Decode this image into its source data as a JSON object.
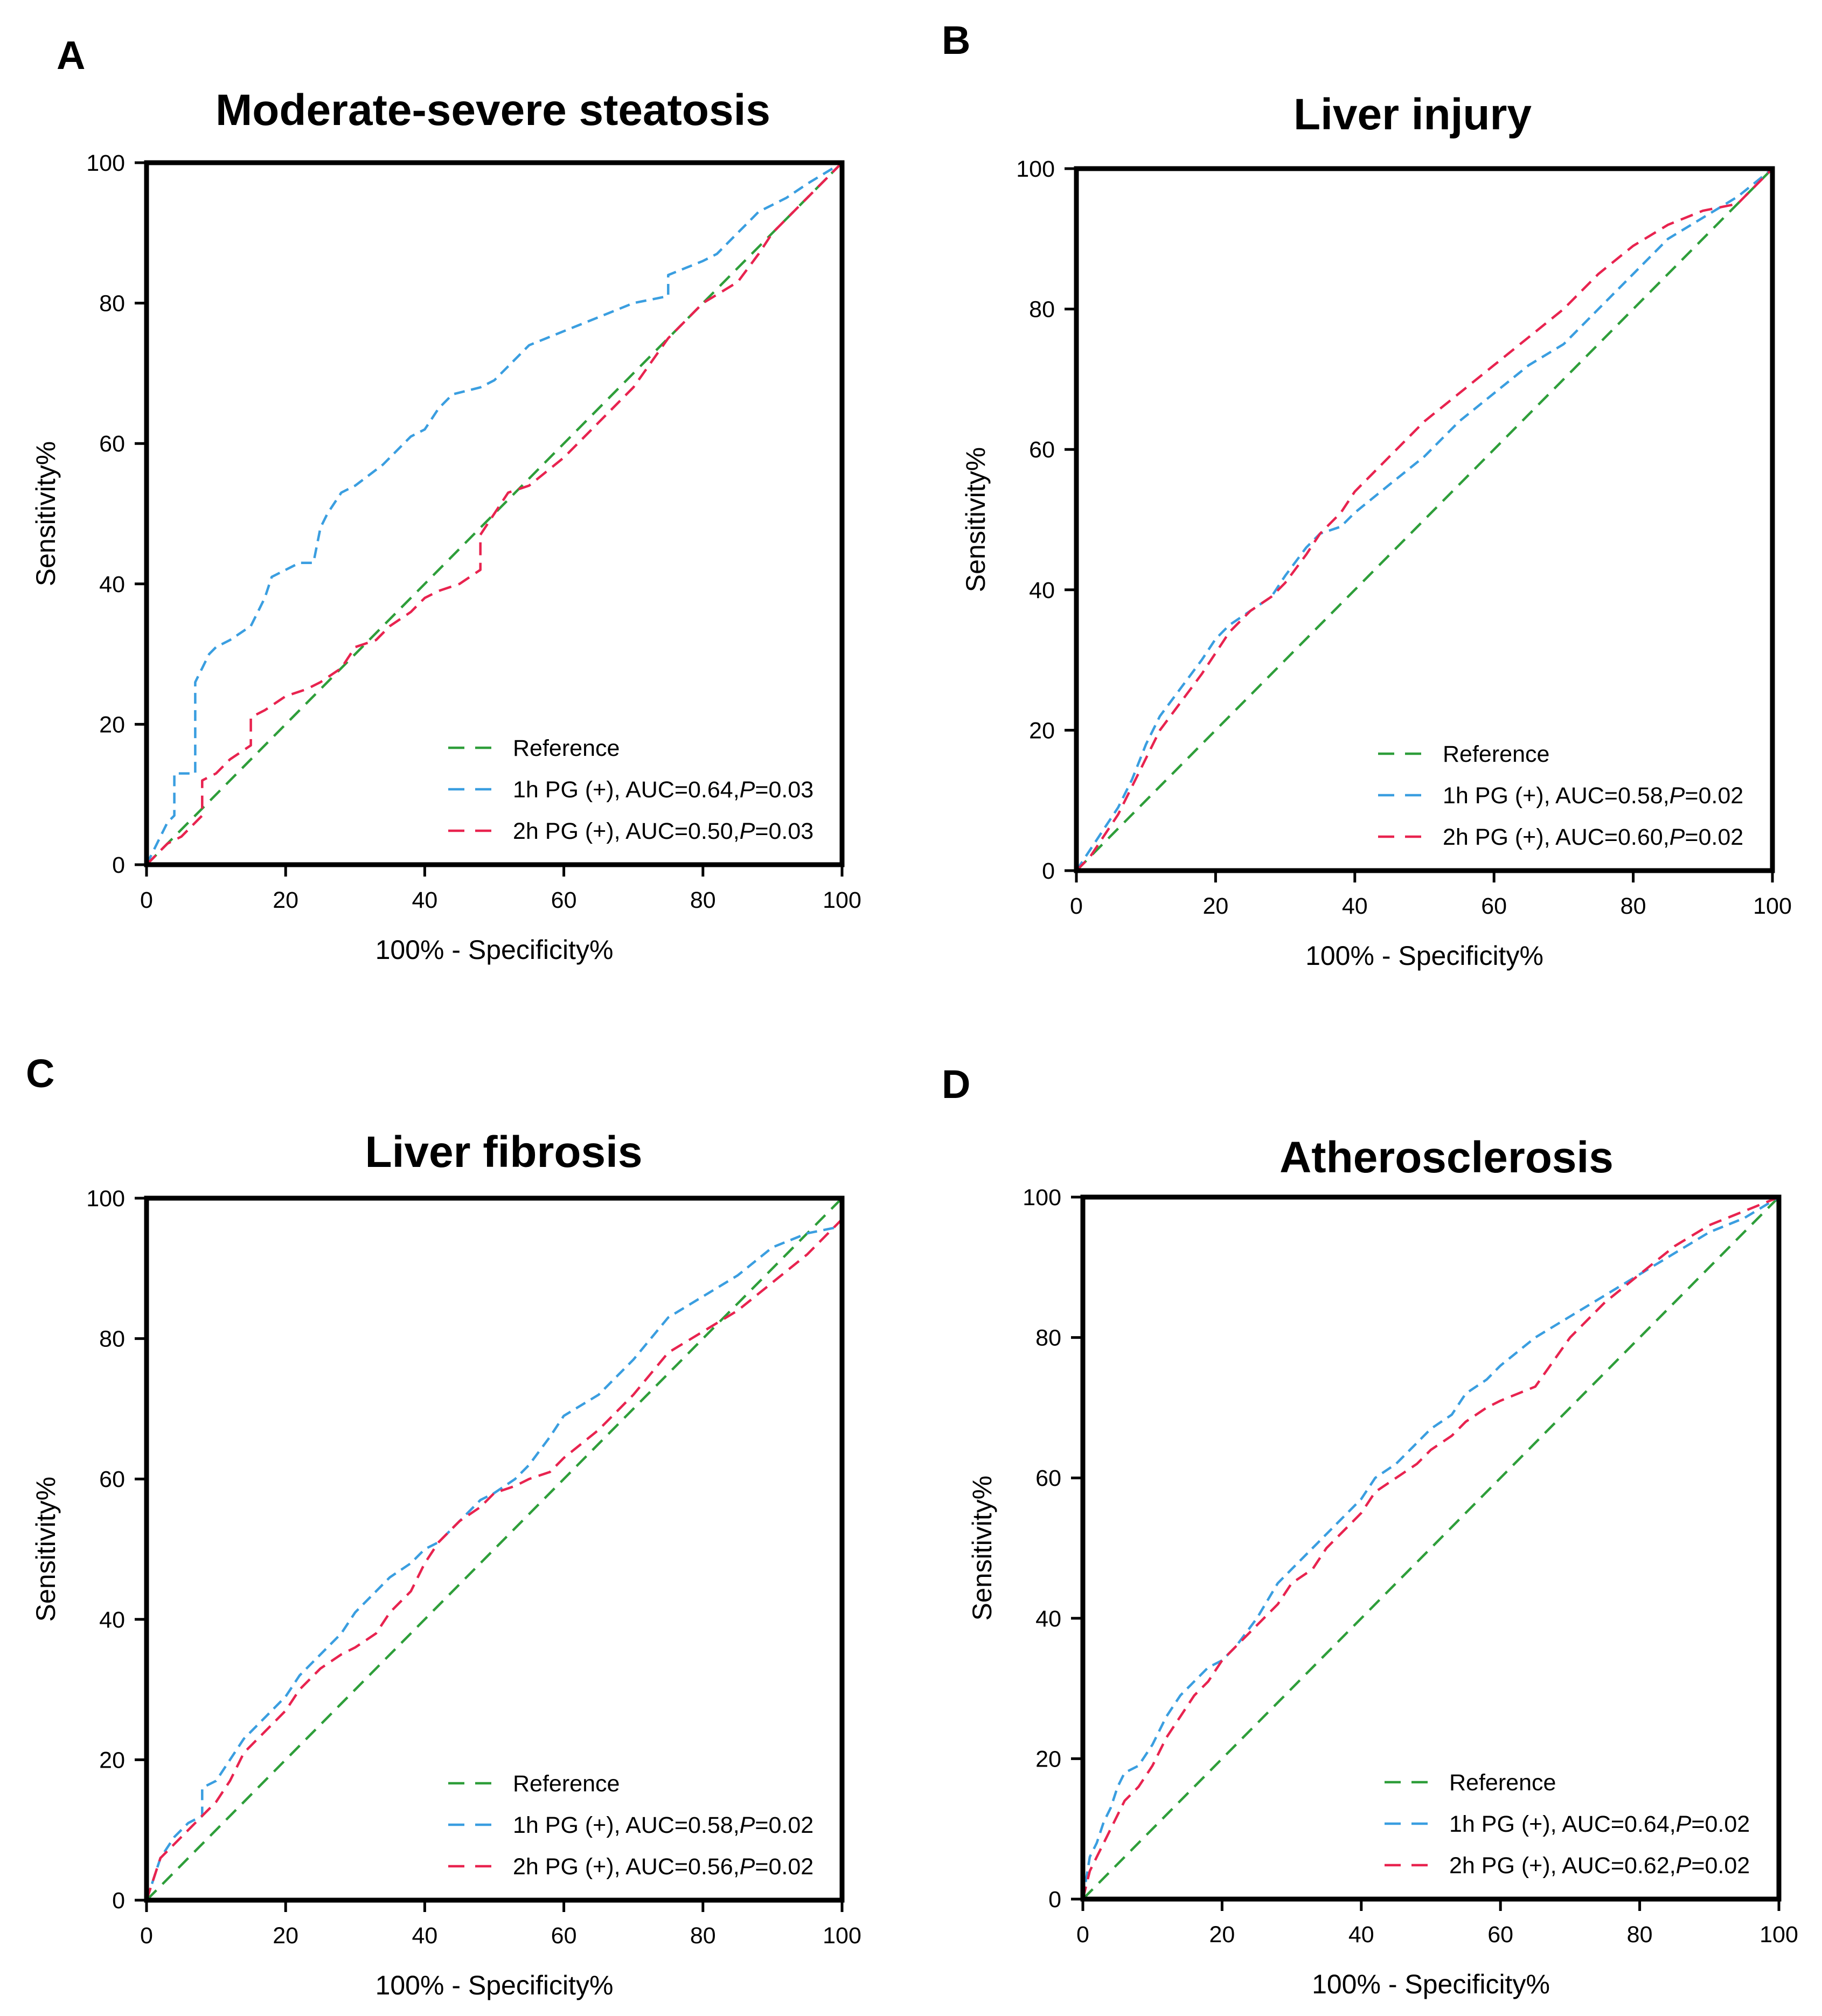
{
  "colors": {
    "reference": "#2e9e3a",
    "pg1h": "#3a9ee0",
    "pg2h": "#e8234f",
    "axis": "#000000"
  },
  "chart_data": [
    {
      "panel": "A",
      "type": "line",
      "title": "Moderate-severe steatosis",
      "xlabel": "100% - Specificity%",
      "ylabel": "Sensitivity%",
      "xlim": [
        0,
        100
      ],
      "ylim": [
        0,
        100
      ],
      "xticks": [
        "0",
        "20",
        "40",
        "60",
        "80",
        "100"
      ],
      "yticks": [
        "0",
        "20",
        "40",
        "60",
        "80",
        "100"
      ],
      "legend_position": "bottom-right",
      "series": [
        {
          "key": "reference",
          "name": "Reference",
          "name_suffix": "",
          "x": [
            0,
            100
          ],
          "y": [
            0,
            100
          ]
        },
        {
          "key": "pg1h",
          "name": "1h PG (+), AUC=0.64,",
          "name_suffix": "=0.03",
          "x": [
            0,
            1,
            2,
            3,
            4,
            4,
            5,
            6,
            7,
            7,
            8,
            9,
            10,
            12,
            15,
            17,
            18,
            20,
            22,
            24,
            25,
            26,
            28,
            30,
            34,
            38,
            40,
            42,
            44,
            48,
            50,
            52,
            55,
            60,
            65,
            70,
            75,
            75,
            80,
            82,
            85,
            86,
            88,
            90,
            92,
            95,
            100
          ],
          "y": [
            0,
            2,
            4,
            6,
            7,
            13,
            13,
            13,
            13,
            26,
            28,
            30,
            31,
            32,
            34,
            38,
            41,
            42,
            43,
            43,
            48,
            50,
            53,
            54,
            57,
            61,
            62,
            65,
            67,
            68,
            69,
            71,
            74,
            76,
            78,
            80,
            81,
            84,
            86,
            87,
            90,
            91,
            93,
            94,
            95,
            97,
            100
          ]
        },
        {
          "key": "pg2h",
          "name": "2h PG (+), AUC=0.50,",
          "name_suffix": "=0.03",
          "x": [
            0,
            1,
            2,
            3,
            5,
            7,
            8,
            8,
            10,
            12,
            15,
            15,
            17,
            20,
            23,
            25,
            28,
            30,
            33,
            35,
            38,
            40,
            42,
            45,
            48,
            48,
            50,
            52,
            55,
            60,
            65,
            70,
            75,
            80,
            85,
            88,
            90,
            95,
            100
          ],
          "y": [
            0,
            1,
            2,
            3,
            4,
            6,
            7,
            12,
            13,
            15,
            17,
            21,
            22,
            24,
            25,
            26,
            28,
            31,
            32,
            34,
            36,
            38,
            39,
            40,
            42,
            47,
            50,
            53,
            54,
            58,
            63,
            68,
            75,
            80,
            83,
            87,
            90,
            95,
            100
          ]
        }
      ]
    },
    {
      "panel": "B",
      "type": "line",
      "title": "Liver injury",
      "xlabel": "100% - Specificity%",
      "ylabel": "Sensitivity%",
      "xlim": [
        0,
        100
      ],
      "ylim": [
        0,
        100
      ],
      "xticks": [
        "0",
        "20",
        "40",
        "60",
        "80",
        "100"
      ],
      "yticks": [
        "0",
        "20",
        "40",
        "60",
        "80",
        "100"
      ],
      "legend_position": "bottom-right",
      "series": [
        {
          "key": "reference",
          "name": "Reference",
          "name_suffix": "",
          "x": [
            0,
            100
          ],
          "y": [
            0,
            100
          ]
        },
        {
          "key": "pg1h",
          "name": "1h PG (+), AUC=0.58,",
          "name_suffix": "=0.02",
          "x": [
            0,
            2,
            4,
            6,
            8,
            10,
            12,
            15,
            18,
            20,
            22,
            25,
            28,
            30,
            33,
            35,
            38,
            40,
            45,
            50,
            55,
            60,
            65,
            70,
            75,
            80,
            85,
            90,
            95,
            100
          ],
          "y": [
            0,
            3,
            6,
            9,
            13,
            18,
            22,
            26,
            30,
            33,
            35,
            37,
            39,
            42,
            46,
            48,
            49,
            51,
            55,
            59,
            64,
            68,
            72,
            75,
            80,
            85,
            90,
            93,
            96,
            100
          ]
        },
        {
          "key": "pg2h",
          "name": "2h PG (+), AUC=0.60,",
          "name_suffix": "=0.02",
          "x": [
            0,
            2,
            4,
            6,
            8,
            10,
            12,
            15,
            18,
            20,
            22,
            25,
            28,
            30,
            33,
            35,
            38,
            40,
            45,
            50,
            55,
            60,
            65,
            70,
            75,
            80,
            85,
            90,
            95,
            100
          ],
          "y": [
            0,
            2,
            5,
            8,
            12,
            16,
            20,
            24,
            28,
            31,
            34,
            37,
            39,
            41,
            45,
            48,
            51,
            54,
            59,
            64,
            68,
            72,
            76,
            80,
            85,
            89,
            92,
            94,
            95,
            100
          ]
        }
      ]
    },
    {
      "panel": "C",
      "type": "line",
      "title": "Liver fibrosis",
      "xlabel": "100% - Specificity%",
      "ylabel": "Sensitivity%",
      "xlim": [
        0,
        100
      ],
      "ylim": [
        0,
        100
      ],
      "xticks": [
        "0",
        "20",
        "40",
        "60",
        "80",
        "100"
      ],
      "yticks": [
        "0",
        "20",
        "40",
        "60",
        "80",
        "100"
      ],
      "legend_position": "bottom-right",
      "series": [
        {
          "key": "reference",
          "name": "Reference",
          "name_suffix": "",
          "x": [
            0,
            100
          ],
          "y": [
            0,
            100
          ]
        },
        {
          "key": "pg1h",
          "name": "1h PG (+), AUC=0.58,",
          "name_suffix": "=0.02",
          "x": [
            0,
            1,
            2,
            4,
            6,
            8,
            8,
            10,
            12,
            14,
            16,
            18,
            20,
            22,
            25,
            28,
            30,
            33,
            35,
            38,
            40,
            42,
            45,
            48,
            50,
            53,
            55,
            58,
            60,
            65,
            70,
            75,
            80,
            85,
            90,
            95,
            100
          ],
          "y": [
            0,
            3,
            6,
            9,
            11,
            12,
            16,
            17,
            20,
            23,
            25,
            27,
            29,
            32,
            35,
            38,
            41,
            44,
            46,
            48,
            50,
            51,
            54,
            57,
            58,
            60,
            62,
            66,
            69,
            72,
            77,
            83,
            86,
            89,
            93,
            95,
            96
          ]
        },
        {
          "key": "pg2h",
          "name": "2h PG (+), AUC=0.56,",
          "name_suffix": "=0.02",
          "x": [
            0,
            1,
            2,
            4,
            6,
            8,
            10,
            12,
            14,
            16,
            18,
            20,
            22,
            25,
            28,
            30,
            33,
            35,
            38,
            40,
            42,
            45,
            48,
            50,
            53,
            55,
            58,
            60,
            65,
            70,
            75,
            80,
            85,
            90,
            95,
            100
          ],
          "y": [
            0,
            3,
            6,
            8,
            10,
            12,
            14,
            17,
            21,
            23,
            25,
            27,
            30,
            33,
            35,
            36,
            38,
            41,
            44,
            48,
            51,
            54,
            56,
            58,
            59,
            60,
            61,
            63,
            67,
            72,
            78,
            81,
            84,
            88,
            92,
            97
          ]
        }
      ]
    },
    {
      "panel": "D",
      "type": "line",
      "title": "Atherosclerosis",
      "xlabel": "100% - Specificity%",
      "ylabel": "Sensitivity%",
      "xlim": [
        0,
        100
      ],
      "ylim": [
        0,
        100
      ],
      "xticks": [
        "0",
        "20",
        "40",
        "60",
        "80",
        "100"
      ],
      "yticks": [
        "0",
        "20",
        "40",
        "60",
        "80",
        "100"
      ],
      "legend_position": "bottom-right",
      "series": [
        {
          "key": "reference",
          "name": "Reference",
          "name_suffix": "",
          "x": [
            0,
            100
          ],
          "y": [
            0,
            100
          ]
        },
        {
          "key": "pg1h",
          "name": "1h PG (+), AUC=0.64,",
          "name_suffix": "=0.02",
          "x": [
            0,
            1,
            2,
            3,
            4,
            5,
            6,
            8,
            10,
            12,
            14,
            16,
            18,
            20,
            22,
            25,
            28,
            30,
            33,
            35,
            38,
            40,
            42,
            45,
            48,
            50,
            53,
            55,
            58,
            60,
            65,
            70,
            75,
            80,
            85,
            90,
            95,
            100
          ],
          "y": [
            0,
            6,
            8,
            11,
            13,
            16,
            18,
            19,
            22,
            26,
            29,
            31,
            33,
            34,
            36,
            40,
            45,
            47,
            50,
            52,
            55,
            57,
            60,
            62,
            65,
            67,
            69,
            72,
            74,
            76,
            80,
            83,
            86,
            89,
            92,
            95,
            97,
            100
          ]
        },
        {
          "key": "pg2h",
          "name": "2h PG (+), AUC=0.62,",
          "name_suffix": "=0.02",
          "x": [
            0,
            1,
            2,
            3,
            4,
            5,
            6,
            8,
            10,
            12,
            14,
            16,
            18,
            20,
            22,
            25,
            28,
            30,
            33,
            35,
            38,
            40,
            42,
            45,
            48,
            50,
            53,
            55,
            58,
            60,
            65,
            70,
            75,
            80,
            85,
            90,
            95,
            100
          ],
          "y": [
            0,
            4,
            6,
            8,
            10,
            12,
            14,
            16,
            19,
            23,
            26,
            29,
            31,
            34,
            36,
            39,
            42,
            45,
            47,
            50,
            53,
            55,
            58,
            60,
            62,
            64,
            66,
            68,
            70,
            71,
            73,
            80,
            85,
            89,
            93,
            96,
            98,
            100
          ]
        }
      ]
    }
  ]
}
